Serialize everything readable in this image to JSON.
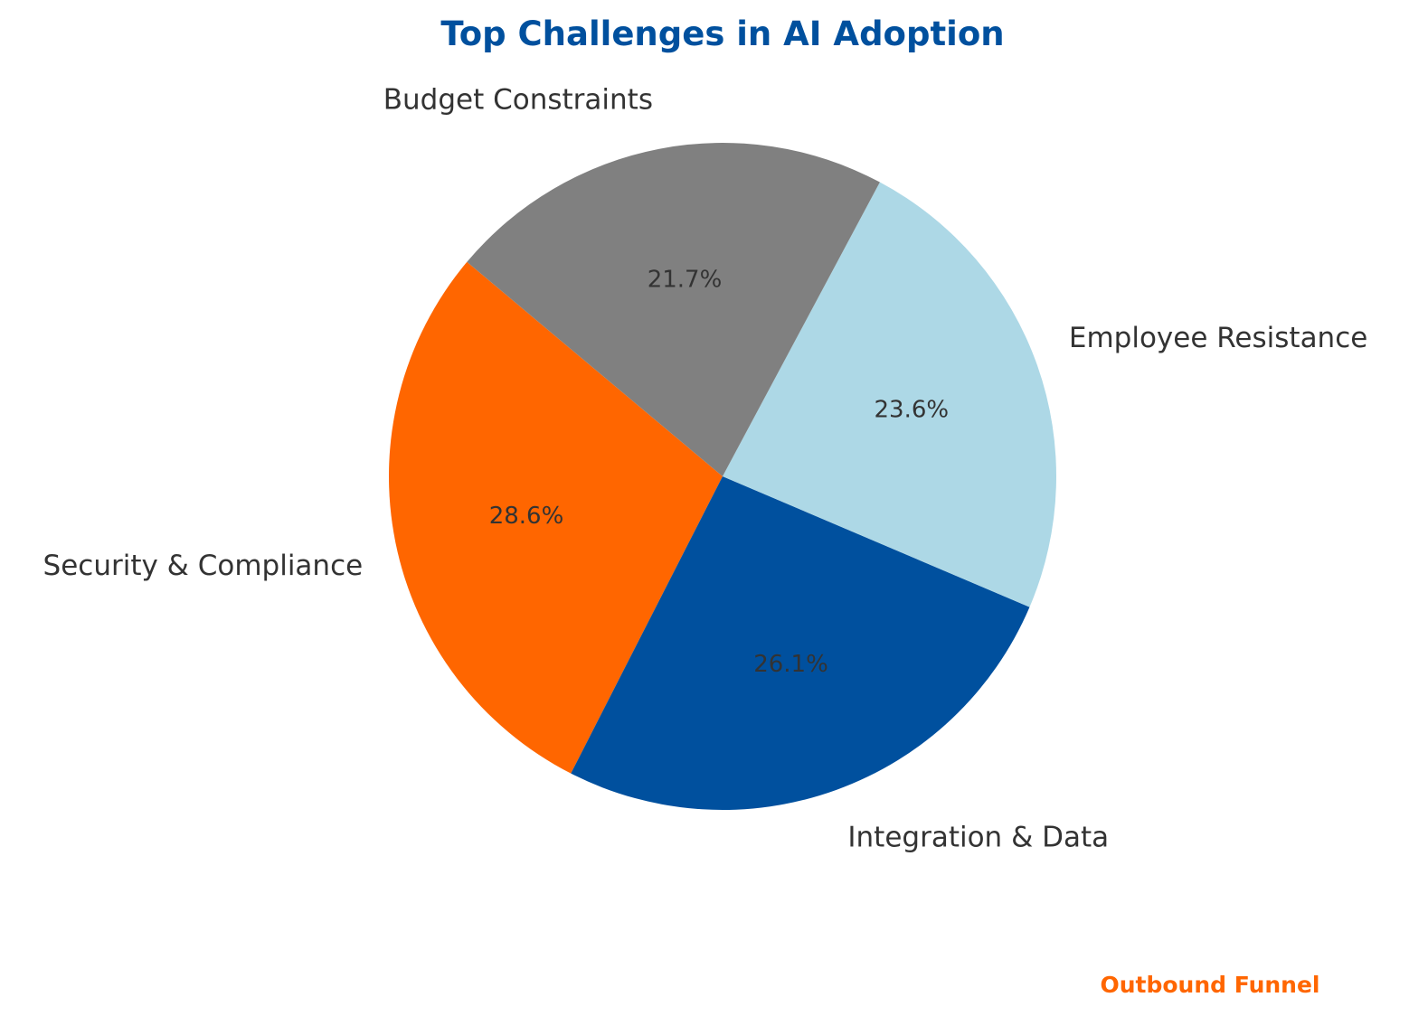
{
  "chart_data": {
    "type": "pie",
    "title": "Top Challenges in AI Adoption",
    "start_angle_deg": 140,
    "direction": "counterclockwise",
    "slices": [
      {
        "name": "Security & Compliance",
        "value": 28.6,
        "pct_label": "28.6%",
        "color": "#FF6600"
      },
      {
        "name": "Integration & Data",
        "value": 26.1,
        "pct_label": "26.1%",
        "color": "#00509E"
      },
      {
        "name": "Employee Resistance",
        "value": 23.6,
        "pct_label": "23.6%",
        "color": "#ADD8E6"
      },
      {
        "name": "Budget Constraints",
        "value": 21.7,
        "pct_label": "21.7%",
        "color": "#808080"
      }
    ],
    "title_color": "#00509E",
    "text_color": "#333333"
  },
  "footer": {
    "brand": "Outbound Funnel",
    "brand_color": "#FF6600"
  }
}
